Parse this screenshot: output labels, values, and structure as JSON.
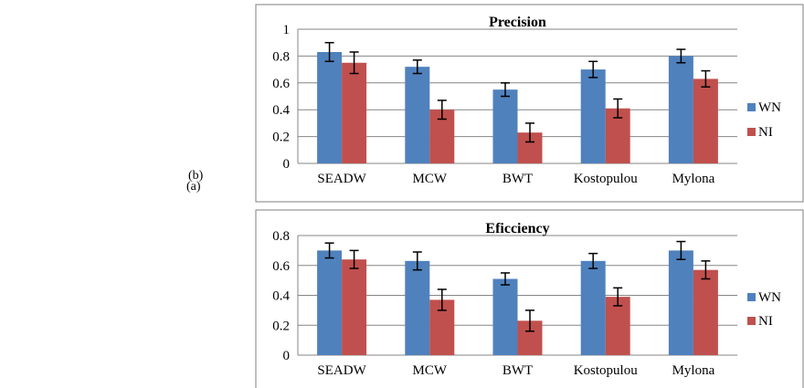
{
  "side_labels": {
    "b": "(b)",
    "a": "(a)"
  },
  "colors": {
    "WN": "#4f81bd",
    "NI": "#c0504d",
    "grid": "#868686",
    "frame": "#7f7f7f"
  },
  "chart_data": [
    {
      "type": "bar",
      "title": "Precision",
      "categories": [
        "SEADW",
        "MCW",
        "BWT",
        "Kostopulou",
        "Mylona"
      ],
      "series": [
        {
          "name": "WN",
          "values": [
            0.83,
            0.72,
            0.55,
            0.7,
            0.8
          ],
          "errors": [
            0.07,
            0.05,
            0.05,
            0.06,
            0.05
          ]
        },
        {
          "name": "NI",
          "values": [
            0.75,
            0.4,
            0.23,
            0.41,
            0.63
          ],
          "errors": [
            0.08,
            0.07,
            0.07,
            0.07,
            0.06
          ]
        }
      ],
      "ylim": [
        0,
        1
      ],
      "yticks": [
        "0",
        "0.2",
        "0.4",
        "0.6",
        "0.8",
        "1"
      ],
      "grid": true,
      "legend": "right"
    },
    {
      "type": "bar",
      "title": "Eficciency",
      "categories": [
        "SEADW",
        "MCW",
        "BWT",
        "Kostopulou",
        "Mylona"
      ],
      "series": [
        {
          "name": "WN",
          "values": [
            0.7,
            0.63,
            0.51,
            0.63,
            0.7
          ],
          "errors": [
            0.05,
            0.06,
            0.04,
            0.05,
            0.06
          ]
        },
        {
          "name": "NI",
          "values": [
            0.64,
            0.37,
            0.23,
            0.39,
            0.57
          ],
          "errors": [
            0.06,
            0.07,
            0.07,
            0.06,
            0.06
          ]
        }
      ],
      "ylim": [
        0,
        0.8
      ],
      "yticks": [
        "0",
        "0.2",
        "0.4",
        "0.6",
        "0.8"
      ],
      "grid": true,
      "legend": "right"
    }
  ]
}
